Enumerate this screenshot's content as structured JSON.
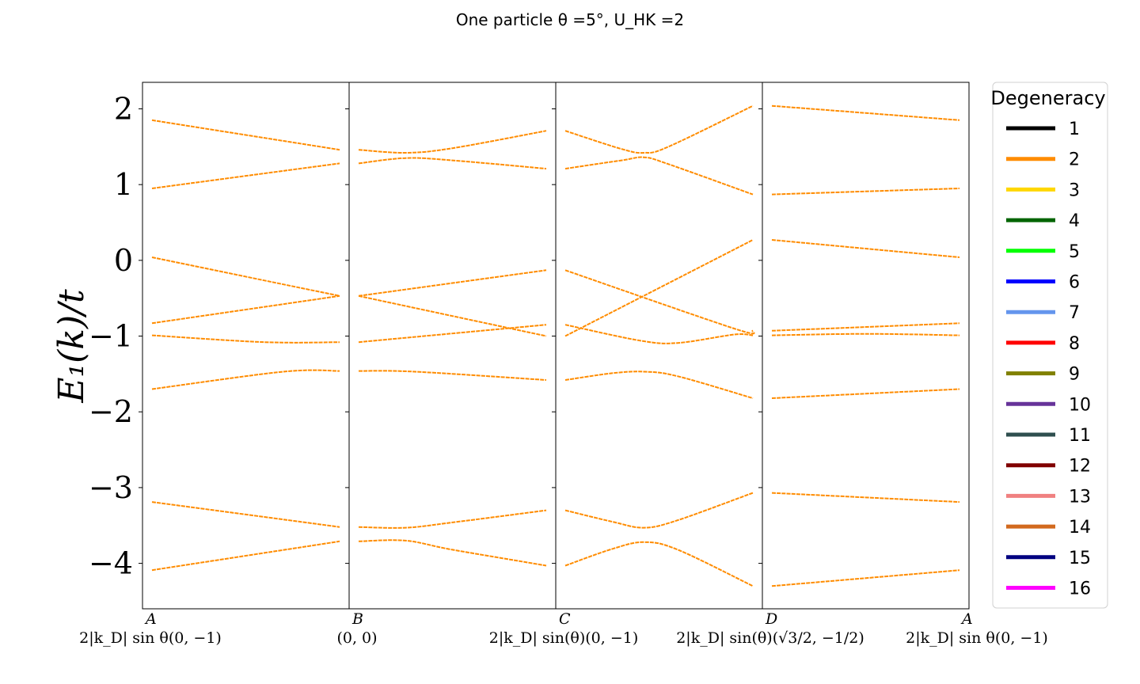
{
  "chart_data": {
    "type": "line",
    "title": "One particle θ =5°, U_HK =2",
    "ylabel": "E₁(k)/t",
    "xlabel": "",
    "ylim": [
      -4.6,
      2.35
    ],
    "yticks": [
      2,
      1,
      0,
      -1,
      -2,
      -3,
      -4
    ],
    "ytick_labels": [
      "2",
      "1",
      "0",
      "−1",
      "−2",
      "−3",
      "−4"
    ],
    "grid": false,
    "kpoints": [
      {
        "letter": "A",
        "coord": "2|k_D| sin θ(0, −1)"
      },
      {
        "letter": "B",
        "coord": "(0, 0)"
      },
      {
        "letter": "C",
        "coord": "2|k_D| sin(θ)(0, −1)"
      },
      {
        "letter": "D",
        "coord": "2|k_D| sin(θ)(√3/2, −1/2)"
      },
      {
        "letter": "A",
        "coord": "2|k_D| sin θ(0, −1)"
      }
    ],
    "line_color": "#ff8c00",
    "segments": [
      {
        "from": "A",
        "to": "B",
        "bands": [
          {
            "t": [
              0,
              1
            ],
            "y": [
              1.85,
              1.46
            ]
          },
          {
            "t": [
              0,
              1
            ],
            "y": [
              0.95,
              1.28
            ]
          },
          {
            "t": [
              0,
              1
            ],
            "y": [
              0.04,
              -0.47
            ]
          },
          {
            "t": [
              0,
              1
            ],
            "y": [
              -0.83,
              -0.47
            ]
          },
          {
            "t": [
              0,
              0.6,
              1
            ],
            "y": [
              -0.99,
              -1.08,
              -1.08
            ]
          },
          {
            "t": [
              0,
              0.7,
              1
            ],
            "y": [
              -1.7,
              -1.47,
              -1.46
            ]
          },
          {
            "t": [
              0,
              1
            ],
            "y": [
              -3.19,
              -3.52
            ]
          },
          {
            "t": [
              0,
              1
            ],
            "y": [
              -4.09,
              -3.71
            ]
          }
        ]
      },
      {
        "from": "B",
        "to": "C",
        "bands": [
          {
            "t": [
              0,
              0.25,
              0.5,
              1
            ],
            "y": [
              1.46,
              1.42,
              1.48,
              1.71
            ]
          },
          {
            "t": [
              0,
              0.25,
              0.5,
              1
            ],
            "y": [
              1.28,
              1.35,
              1.32,
              1.21
            ]
          },
          {
            "t": [
              0,
              1
            ],
            "y": [
              -0.47,
              -0.13
            ]
          },
          {
            "t": [
              0,
              1
            ],
            "y": [
              -0.47,
              -1.0
            ]
          },
          {
            "t": [
              0,
              1
            ],
            "y": [
              -1.08,
              -0.85
            ]
          },
          {
            "t": [
              0,
              0.3,
              1
            ],
            "y": [
              -1.46,
              -1.47,
              -1.58
            ]
          },
          {
            "t": [
              0,
              0.25,
              0.5,
              1
            ],
            "y": [
              -3.52,
              -3.53,
              -3.46,
              -3.3
            ]
          },
          {
            "t": [
              0,
              0.25,
              0.5,
              1
            ],
            "y": [
              -3.71,
              -3.7,
              -3.82,
              -4.03
            ]
          }
        ]
      },
      {
        "from": "C",
        "to": "D",
        "bands": [
          {
            "t": [
              0,
              0.3,
              0.42,
              0.55,
              1
            ],
            "y": [
              1.71,
              1.47,
              1.42,
              1.5,
              2.04
            ]
          },
          {
            "t": [
              0,
              0.3,
              0.42,
              0.55,
              1
            ],
            "y": [
              1.21,
              1.32,
              1.36,
              1.27,
              0.87
            ]
          },
          {
            "t": [
              0,
              1
            ],
            "y": [
              -1.0,
              0.27
            ]
          },
          {
            "t": [
              0,
              0.9,
              1
            ],
            "y": [
              -0.13,
              -0.9,
              -0.93
            ]
          },
          {
            "t": [
              0,
              0.4,
              0.6,
              0.9,
              1
            ],
            "y": [
              -0.85,
              -1.06,
              -1.09,
              -0.98,
              -0.99
            ]
          },
          {
            "t": [
              0,
              0.25,
              0.42,
              0.6,
              1
            ],
            "y": [
              -1.58,
              -1.49,
              -1.47,
              -1.53,
              -1.82
            ]
          },
          {
            "t": [
              0,
              0.25,
              0.42,
              0.6,
              1
            ],
            "y": [
              -3.3,
              -3.45,
              -3.53,
              -3.43,
              -3.07
            ]
          },
          {
            "t": [
              0,
              0.25,
              0.42,
              0.6,
              1
            ],
            "y": [
              -4.03,
              -3.81,
              -3.72,
              -3.82,
              -4.3
            ]
          }
        ]
      },
      {
        "from": "D",
        "to": "A",
        "bands": [
          {
            "t": [
              0,
              1
            ],
            "y": [
              2.04,
              1.85
            ]
          },
          {
            "t": [
              0,
              1
            ],
            "y": [
              0.87,
              0.95
            ]
          },
          {
            "t": [
              0,
              1
            ],
            "y": [
              0.27,
              0.04
            ]
          },
          {
            "t": [
              0,
              1
            ],
            "y": [
              -0.93,
              -0.83
            ]
          },
          {
            "t": [
              0,
              0.5,
              1
            ],
            "y": [
              -0.99,
              -0.97,
              -0.99
            ]
          },
          {
            "t": [
              0,
              1
            ],
            "y": [
              -1.82,
              -1.7
            ]
          },
          {
            "t": [
              0,
              1
            ],
            "y": [
              -3.07,
              -3.19
            ]
          },
          {
            "t": [
              0,
              1
            ],
            "y": [
              -4.3,
              -4.09
            ]
          }
        ]
      }
    ],
    "legend": {
      "title": "Degeneracy",
      "placement": "outside-right",
      "entries": [
        {
          "label": "1",
          "color": "#000000"
        },
        {
          "label": "2",
          "color": "#ff8c00"
        },
        {
          "label": "3",
          "color": "#ffd700"
        },
        {
          "label": "4",
          "color": "#006400"
        },
        {
          "label": "5",
          "color": "#00ff00"
        },
        {
          "label": "6",
          "color": "#0000ff"
        },
        {
          "label": "7",
          "color": "#6495ed"
        },
        {
          "label": "8",
          "color": "#ff0000"
        },
        {
          "label": "9",
          "color": "#808000"
        },
        {
          "label": "10",
          "color": "#663399"
        },
        {
          "label": "11",
          "color": "#2f4f4f"
        },
        {
          "label": "12",
          "color": "#800000"
        },
        {
          "label": "13",
          "color": "#f08080"
        },
        {
          "label": "14",
          "color": "#d2691e"
        },
        {
          "label": "15",
          "color": "#000080"
        },
        {
          "label": "16",
          "color": "#ff00ff"
        }
      ]
    }
  }
}
